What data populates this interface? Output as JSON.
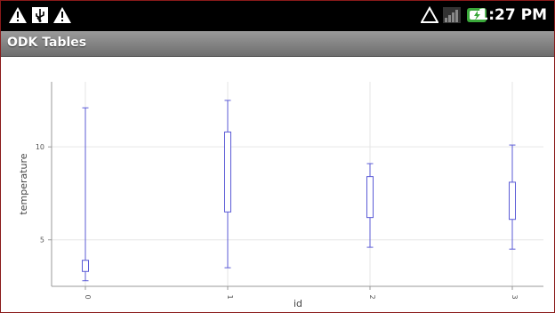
{
  "status_bar": {
    "time": "1:27 PM",
    "icons": [
      "warning-icon",
      "usb-icon",
      "warning-icon",
      "no-signal-triangle-icon",
      "signal-icon",
      "battery-charging-icon"
    ]
  },
  "app": {
    "title": "ODK Tables"
  },
  "colors": {
    "box_stroke": "#5b5bd6",
    "grid": "#e6e6e6",
    "axis": "#999999"
  },
  "chart_data": {
    "type": "box",
    "xlabel": "id",
    "ylabel": "temperature",
    "categories": [
      "0",
      "1",
      "2",
      "3"
    ],
    "y_ticks": [
      5,
      10
    ],
    "ylim": [
      2.5,
      13.5
    ],
    "grid": true,
    "series": [
      {
        "category": "0",
        "min": 2.8,
        "q1": 3.3,
        "q3": 3.9,
        "max": 12.1
      },
      {
        "category": "1",
        "min": 3.5,
        "q1": 6.5,
        "q3": 10.8,
        "max": 12.5
      },
      {
        "category": "2",
        "min": 4.6,
        "q1": 6.2,
        "q3": 8.4,
        "max": 9.1
      },
      {
        "category": "3",
        "min": 4.5,
        "q1": 6.1,
        "q3": 8.1,
        "max": 10.1
      }
    ]
  }
}
